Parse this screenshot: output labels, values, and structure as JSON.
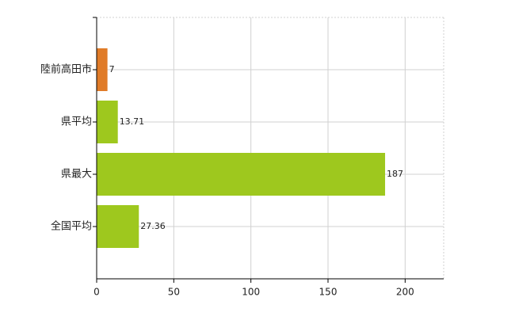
{
  "chart_data": {
    "type": "barh",
    "categories": [
      "陸前高田市",
      "県平均",
      "県最大",
      "全国平均"
    ],
    "values": [
      7,
      13.71,
      187,
      27.36
    ],
    "colors": [
      "#e07b28",
      "#9ec81e",
      "#9ec81e",
      "#9ec81e"
    ],
    "xlim": [
      0,
      225
    ],
    "xticks": [
      0,
      50,
      100,
      150,
      200
    ],
    "grid": true
  }
}
